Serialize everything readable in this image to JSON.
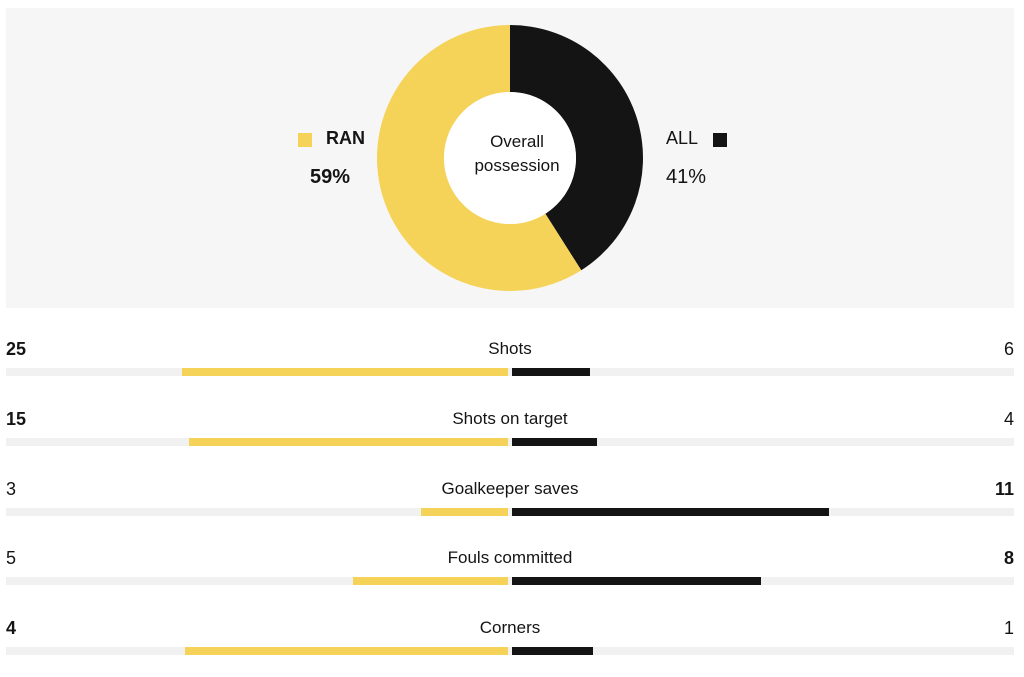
{
  "colors": {
    "home": "#f5d358",
    "away": "#141414",
    "panel": "#f6f6f6",
    "track": "#f1f1f1"
  },
  "possession": {
    "center_line1": "Overall",
    "center_line2": "possession",
    "home": {
      "name": "RAN",
      "value_label": "59%",
      "share": 59
    },
    "away": {
      "name": "ALL",
      "value_label": "41%",
      "share": 41
    }
  },
  "chart_data": [
    {
      "type": "pie",
      "title": "Overall possession",
      "labels": [
        "RAN",
        "ALL"
      ],
      "values": [
        59,
        41
      ],
      "colors": [
        "#f5d358",
        "#141414"
      ]
    },
    {
      "type": "bar",
      "categories": [
        "Shots",
        "Shots on target",
        "Goalkeeper saves",
        "Fouls committed",
        "Corners"
      ],
      "series": [
        {
          "name": "RAN",
          "values": [
            25,
            15,
            3,
            5,
            4
          ]
        },
        {
          "name": "ALL",
          "values": [
            6,
            4,
            11,
            8,
            1
          ]
        }
      ]
    }
  ],
  "stats": [
    {
      "label": "Shots",
      "home": "25",
      "away": "6",
      "home_value": 25,
      "away_value": 6
    },
    {
      "label": "Shots on target",
      "home": "15",
      "away": "4",
      "home_value": 15,
      "away_value": 4
    },
    {
      "label": "Goalkeeper saves",
      "home": "3",
      "away": "11",
      "home_value": 3,
      "away_value": 11
    },
    {
      "label": "Fouls committed",
      "home": "5",
      "away": "8",
      "home_value": 5,
      "away_value": 8
    },
    {
      "label": "Corners",
      "home": "4",
      "away": "1",
      "home_value": 4,
      "away_value": 1
    }
  ]
}
